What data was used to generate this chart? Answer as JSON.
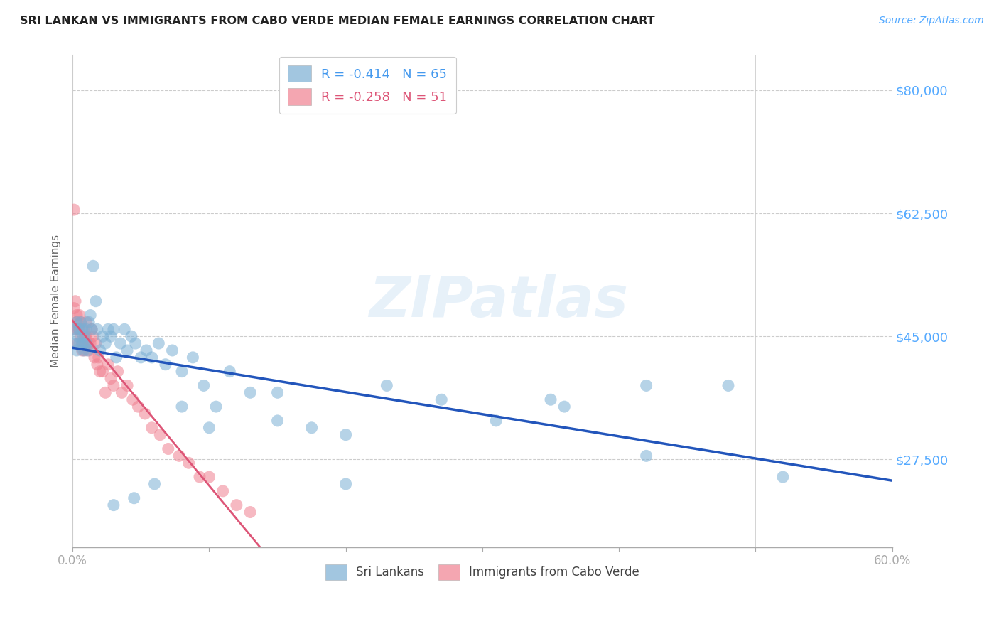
{
  "title": "SRI LANKAN VS IMMIGRANTS FROM CABO VERDE MEDIAN FEMALE EARNINGS CORRELATION CHART",
  "source": "Source: ZipAtlas.com",
  "ylabel": "Median Female Earnings",
  "xlim": [
    0.0,
    0.6
  ],
  "ylim": [
    15000,
    85000
  ],
  "legend_entries": [
    {
      "label": "R = -0.414   N = 65",
      "color": "#a8c4e0"
    },
    {
      "label": "R = -0.258   N = 51",
      "color": "#f4a0b0"
    }
  ],
  "sri_lankan_color": "#7bafd4",
  "cabo_verde_color": "#f08090",
  "sri_lankan_line_color": "#2255bb",
  "cabo_verde_line_color": "#dd5577",
  "cabo_verde_line_solid_end": 0.3,
  "watermark": "ZIPatlas",
  "background_color": "#ffffff",
  "sri_lankans_label": "Sri Lankans",
  "cabo_verde_label": "Immigrants from Cabo Verde",
  "sri_lankan_x": [
    0.001,
    0.002,
    0.003,
    0.003,
    0.004,
    0.005,
    0.005,
    0.006,
    0.007,
    0.007,
    0.008,
    0.008,
    0.009,
    0.01,
    0.01,
    0.011,
    0.012,
    0.013,
    0.014,
    0.015,
    0.017,
    0.018,
    0.02,
    0.022,
    0.024,
    0.026,
    0.028,
    0.03,
    0.032,
    0.035,
    0.038,
    0.04,
    0.043,
    0.046,
    0.05,
    0.054,
    0.058,
    0.063,
    0.068,
    0.073,
    0.08,
    0.088,
    0.096,
    0.105,
    0.115,
    0.13,
    0.15,
    0.175,
    0.2,
    0.23,
    0.27,
    0.31,
    0.36,
    0.42,
    0.48,
    0.52,
    0.42,
    0.35,
    0.2,
    0.15,
    0.1,
    0.08,
    0.06,
    0.045,
    0.03
  ],
  "sri_lankan_y": [
    44000,
    46000,
    43000,
    47000,
    45000,
    44000,
    46000,
    47000,
    44000,
    46000,
    45000,
    43000,
    44000,
    46000,
    44000,
    43000,
    47000,
    48000,
    46000,
    55000,
    50000,
    46000,
    43000,
    45000,
    44000,
    46000,
    45000,
    46000,
    42000,
    44000,
    46000,
    43000,
    45000,
    44000,
    42000,
    43000,
    42000,
    44000,
    41000,
    43000,
    40000,
    42000,
    38000,
    35000,
    40000,
    37000,
    33000,
    32000,
    31000,
    38000,
    36000,
    33000,
    35000,
    28000,
    38000,
    25000,
    38000,
    36000,
    24000,
    37000,
    32000,
    35000,
    24000,
    22000,
    21000
  ],
  "cabo_verde_x": [
    0.001,
    0.001,
    0.002,
    0.002,
    0.003,
    0.003,
    0.004,
    0.004,
    0.005,
    0.005,
    0.006,
    0.006,
    0.007,
    0.007,
    0.008,
    0.008,
    0.009,
    0.009,
    0.01,
    0.01,
    0.011,
    0.012,
    0.013,
    0.014,
    0.015,
    0.016,
    0.017,
    0.018,
    0.019,
    0.02,
    0.022,
    0.024,
    0.026,
    0.028,
    0.03,
    0.033,
    0.036,
    0.04,
    0.044,
    0.048,
    0.053,
    0.058,
    0.064,
    0.07,
    0.078,
    0.085,
    0.093,
    0.1,
    0.11,
    0.12,
    0.13
  ],
  "cabo_verde_y": [
    63000,
    49000,
    50000,
    46000,
    48000,
    47000,
    46000,
    44000,
    48000,
    46000,
    47000,
    45000,
    44000,
    43000,
    46000,
    44000,
    45000,
    43000,
    47000,
    45000,
    44000,
    43000,
    44000,
    46000,
    45000,
    42000,
    44000,
    41000,
    42000,
    40000,
    40000,
    37000,
    41000,
    39000,
    38000,
    40000,
    37000,
    38000,
    36000,
    35000,
    34000,
    32000,
    31000,
    29000,
    28000,
    27000,
    25000,
    25000,
    23000,
    21000,
    20000
  ],
  "ytick_positions": [
    27500,
    45000,
    62500,
    80000
  ],
  "ytick_labels": [
    "$27,500",
    "$45,000",
    "$62,500",
    "$80,000"
  ],
  "legend_text_color_sl": "#4499ee",
  "legend_text_color_cv": "#dd5577",
  "right_tick_color": "#55aaff"
}
